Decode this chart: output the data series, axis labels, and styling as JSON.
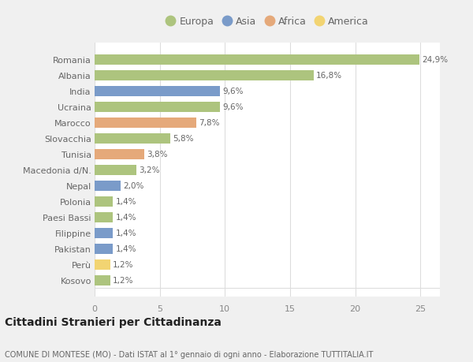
{
  "countries": [
    "Romania",
    "Albania",
    "India",
    "Ucraina",
    "Marocco",
    "Slovacchia",
    "Tunisia",
    "Macedonia d/N.",
    "Nepal",
    "Polonia",
    "Paesi Bassi",
    "Filippine",
    "Pakistan",
    "Perù",
    "Kosovo"
  ],
  "values": [
    24.9,
    16.8,
    9.6,
    9.6,
    7.8,
    5.8,
    3.8,
    3.2,
    2.0,
    1.4,
    1.4,
    1.4,
    1.4,
    1.2,
    1.2
  ],
  "labels": [
    "24,9%",
    "16,8%",
    "9,6%",
    "9,6%",
    "7,8%",
    "5,8%",
    "3,8%",
    "3,2%",
    "2,0%",
    "1,4%",
    "1,4%",
    "1,4%",
    "1,4%",
    "1,2%",
    "1,2%"
  ],
  "continents": [
    "Europa",
    "Europa",
    "Asia",
    "Europa",
    "Africa",
    "Europa",
    "Africa",
    "Europa",
    "Asia",
    "Europa",
    "Europa",
    "Asia",
    "Asia",
    "America",
    "Europa"
  ],
  "colors": {
    "Europa": "#adc47e",
    "Asia": "#7a9bc9",
    "Africa": "#e5a97a",
    "America": "#f2d472"
  },
  "title": "Cittadini Stranieri per Cittadinanza",
  "subtitle": "COMUNE DI MONTESE (MO) - Dati ISTAT al 1° gennaio di ogni anno - Elaborazione TUTTITALIA.IT",
  "xlim": [
    0,
    26.5
  ],
  "xticks": [
    0,
    5,
    10,
    15,
    20,
    25
  ],
  "background_color": "#f0f0f0",
  "plot_bg_color": "#ffffff",
  "grid_color": "#dddddd",
  "label_color": "#666666",
  "tick_color": "#888888",
  "title_color": "#222222",
  "subtitle_color": "#666666",
  "bar_height": 0.65
}
